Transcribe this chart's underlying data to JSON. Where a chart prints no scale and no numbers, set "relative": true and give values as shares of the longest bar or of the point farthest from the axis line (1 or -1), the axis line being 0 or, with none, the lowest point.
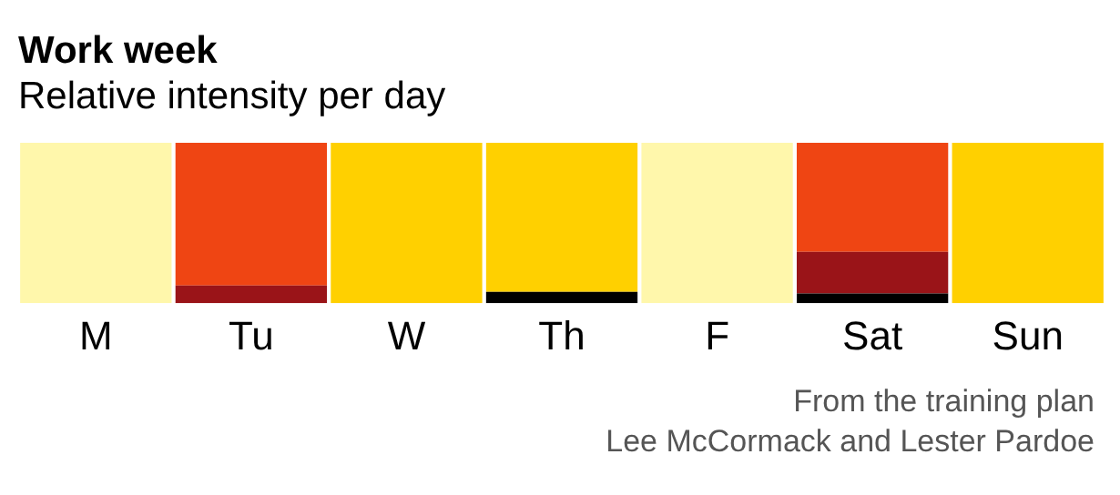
{
  "chart_data": {
    "type": "bar",
    "title": "Work week",
    "subtitle": "Relative intensity per day",
    "categories": [
      "M",
      "Tu",
      "W",
      "Th",
      "F",
      "Sat",
      "Sun"
    ],
    "stacked": true,
    "relative": true,
    "legend": false,
    "grid": false,
    "series": [
      {
        "color": "#000000",
        "values": [
          0,
          0,
          0,
          0.07,
          0,
          0.06,
          0
        ]
      },
      {
        "color": "#9a1418",
        "values": [
          0,
          0.11,
          0,
          0,
          0,
          0.26,
          0
        ]
      },
      {
        "color": "#ef4513",
        "values": [
          0,
          0.89,
          0,
          0,
          0,
          0.68,
          0
        ]
      },
      {
        "color": "#ffd000",
        "values": [
          0,
          0,
          1,
          0.93,
          0,
          0,
          1
        ]
      },
      {
        "color": "#fff7ab",
        "values": [
          1,
          0,
          0,
          0,
          1,
          0,
          0
        ]
      }
    ],
    "annotations": [
      "From the training plan",
      "Lee McCormack and Lester Pardoe"
    ]
  }
}
